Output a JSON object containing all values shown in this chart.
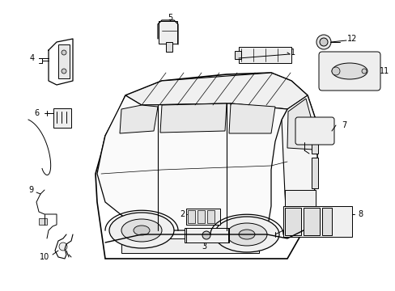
{
  "bg_color": "#ffffff",
  "line_color": "#000000",
  "lw": 0.7
}
